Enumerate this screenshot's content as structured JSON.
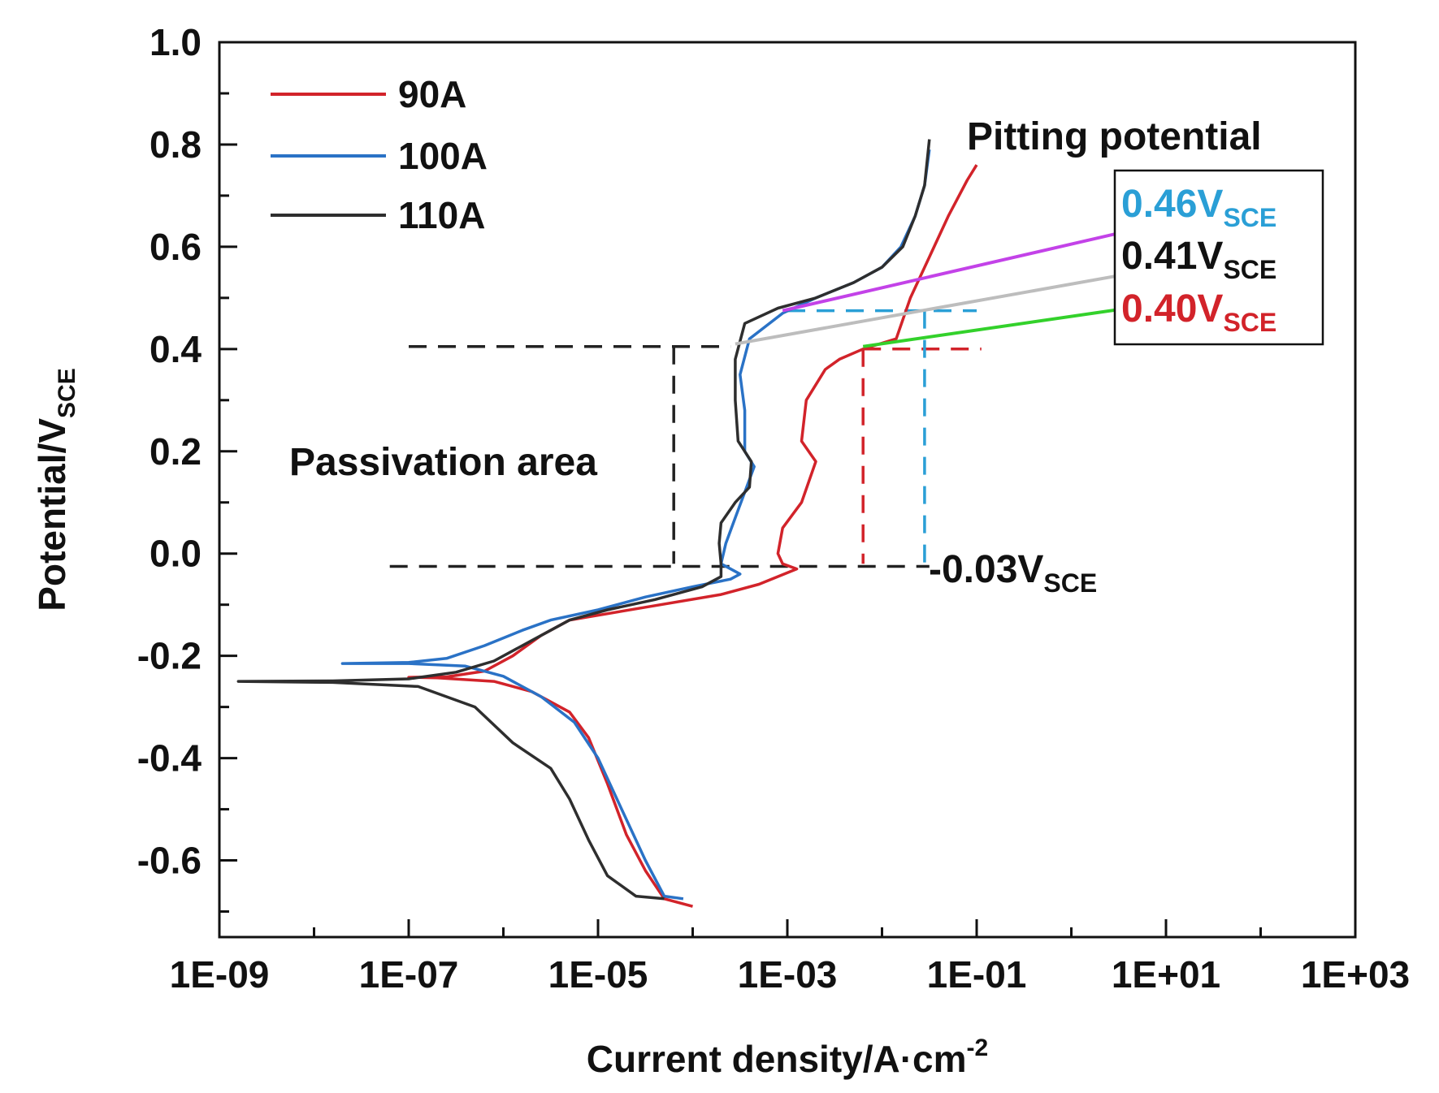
{
  "chart_data": {
    "type": "line",
    "title": "",
    "x_scale": "log",
    "xlim_log10": [
      -9,
      3
    ],
    "ylim": [
      -0.75,
      1.0
    ],
    "xlabel": "Current density/A·cm",
    "xlabel_sup": "-2",
    "ylabel": "Potential/V",
    "ylabel_sub": "SCE",
    "x_ticks": [
      {
        "exp": -9,
        "label": "1E-09"
      },
      {
        "exp": -7,
        "label": "1E-07"
      },
      {
        "exp": -5,
        "label": "1E-05"
      },
      {
        "exp": -3,
        "label": "1E-03"
      },
      {
        "exp": -1,
        "label": "1E-01"
      },
      {
        "exp": 1,
        "label": "1E+01"
      },
      {
        "exp": 3,
        "label": "1E+03"
      }
    ],
    "y_ticks": [
      {
        "value": 1.0,
        "label": "1.0"
      },
      {
        "value": 0.8,
        "label": "0.8"
      },
      {
        "value": 0.6,
        "label": "0.6"
      },
      {
        "value": 0.4,
        "label": "0.4"
      },
      {
        "value": 0.2,
        "label": "0.2"
      },
      {
        "value": 0.0,
        "label": "0.0"
      },
      {
        "value": -0.2,
        "label": "-0.2"
      },
      {
        "value": -0.4,
        "label": "-0.4"
      },
      {
        "value": -0.6,
        "label": "-0.6"
      }
    ],
    "legend_position": "top-left",
    "series": [
      {
        "name": "90A",
        "color": "#d2232a",
        "points": [
          [
            -4.0,
            -0.69
          ],
          [
            -4.3,
            -0.675
          ],
          [
            -4.5,
            -0.62
          ],
          [
            -4.7,
            -0.55
          ],
          [
            -4.9,
            -0.45
          ],
          [
            -5.1,
            -0.36
          ],
          [
            -5.3,
            -0.31
          ],
          [
            -5.7,
            -0.27
          ],
          [
            -6.1,
            -0.25
          ],
          [
            -6.7,
            -0.243
          ],
          [
            -7.0,
            -0.242
          ],
          [
            -6.6,
            -0.241
          ],
          [
            -6.2,
            -0.23
          ],
          [
            -5.9,
            -0.2
          ],
          [
            -5.6,
            -0.16
          ],
          [
            -5.3,
            -0.13
          ],
          [
            -4.5,
            -0.105
          ],
          [
            -3.7,
            -0.08
          ],
          [
            -3.3,
            -0.06
          ],
          [
            -2.9,
            -0.03
          ],
          [
            -3.05,
            -0.02
          ],
          [
            -3.1,
            0.0
          ],
          [
            -3.05,
            0.05
          ],
          [
            -2.85,
            0.1
          ],
          [
            -2.7,
            0.18
          ],
          [
            -2.85,
            0.22
          ],
          [
            -2.8,
            0.3
          ],
          [
            -2.6,
            0.36
          ],
          [
            -2.45,
            0.38
          ],
          [
            -2.2,
            0.4
          ],
          [
            -1.85,
            0.42
          ],
          [
            -1.7,
            0.5
          ],
          [
            -1.5,
            0.58
          ],
          [
            -1.3,
            0.66
          ],
          [
            -1.1,
            0.73
          ],
          [
            -1.0,
            0.76
          ]
        ]
      },
      {
        "name": "100A",
        "color": "#2a72c6",
        "points": [
          [
            -4.1,
            -0.675
          ],
          [
            -4.3,
            -0.67
          ],
          [
            -4.5,
            -0.6
          ],
          [
            -4.75,
            -0.5
          ],
          [
            -5.0,
            -0.4
          ],
          [
            -5.25,
            -0.33
          ],
          [
            -5.6,
            -0.28
          ],
          [
            -6.0,
            -0.24
          ],
          [
            -6.4,
            -0.22
          ],
          [
            -7.0,
            -0.215
          ],
          [
            -7.7,
            -0.215
          ],
          [
            -7.0,
            -0.213
          ],
          [
            -6.6,
            -0.205
          ],
          [
            -6.2,
            -0.18
          ],
          [
            -5.8,
            -0.15
          ],
          [
            -5.5,
            -0.13
          ],
          [
            -5.0,
            -0.11
          ],
          [
            -4.5,
            -0.085
          ],
          [
            -4.0,
            -0.065
          ],
          [
            -3.6,
            -0.05
          ],
          [
            -3.5,
            -0.04
          ],
          [
            -3.6,
            -0.03
          ],
          [
            -3.7,
            -0.02
          ],
          [
            -3.65,
            0.02
          ],
          [
            -3.55,
            0.07
          ],
          [
            -3.45,
            0.12
          ],
          [
            -3.35,
            0.17
          ],
          [
            -3.45,
            0.2
          ],
          [
            -3.45,
            0.28
          ],
          [
            -3.5,
            0.35
          ],
          [
            -3.4,
            0.42
          ],
          [
            -3.05,
            0.47
          ],
          [
            -2.7,
            0.5
          ],
          [
            -2.3,
            0.53
          ],
          [
            -2.0,
            0.56
          ],
          [
            -1.8,
            0.6
          ],
          [
            -1.65,
            0.66
          ],
          [
            -1.55,
            0.72
          ],
          [
            -1.5,
            0.79
          ]
        ]
      },
      {
        "name": "110A",
        "color": "#2e2e2e",
        "points": [
          [
            -4.3,
            -0.675
          ],
          [
            -4.6,
            -0.67
          ],
          [
            -4.9,
            -0.63
          ],
          [
            -5.1,
            -0.56
          ],
          [
            -5.3,
            -0.48
          ],
          [
            -5.5,
            -0.42
          ],
          [
            -5.9,
            -0.37
          ],
          [
            -6.3,
            -0.3
          ],
          [
            -6.9,
            -0.26
          ],
          [
            -7.8,
            -0.252
          ],
          [
            -8.8,
            -0.25
          ],
          [
            -7.8,
            -0.249
          ],
          [
            -7.0,
            -0.245
          ],
          [
            -6.5,
            -0.232
          ],
          [
            -6.1,
            -0.21
          ],
          [
            -5.7,
            -0.17
          ],
          [
            -5.3,
            -0.13
          ],
          [
            -4.9,
            -0.11
          ],
          [
            -4.4,
            -0.09
          ],
          [
            -3.9,
            -0.065
          ],
          [
            -3.7,
            -0.045
          ],
          [
            -3.7,
            -0.02
          ],
          [
            -3.72,
            0.02
          ],
          [
            -3.7,
            0.06
          ],
          [
            -3.55,
            0.1
          ],
          [
            -3.4,
            0.13
          ],
          [
            -3.38,
            0.18
          ],
          [
            -3.52,
            0.22
          ],
          [
            -3.55,
            0.3
          ],
          [
            -3.55,
            0.38
          ],
          [
            -3.45,
            0.45
          ],
          [
            -3.1,
            0.48
          ],
          [
            -2.7,
            0.5
          ],
          [
            -2.3,
            0.53
          ],
          [
            -2.0,
            0.56
          ],
          [
            -1.78,
            0.6
          ],
          [
            -1.65,
            0.66
          ],
          [
            -1.55,
            0.72
          ],
          [
            -1.5,
            0.81
          ]
        ]
      }
    ],
    "guides": [
      {
        "color": "#222222",
        "points": [
          [
            -7.0,
            0.405
          ],
          [
            -3.6,
            0.405
          ]
        ]
      },
      {
        "color": "#222222",
        "points": [
          [
            -4.2,
            0.405
          ],
          [
            -4.2,
            -0.02
          ]
        ]
      },
      {
        "color": "#222222",
        "points": [
          [
            -7.2,
            -0.025
          ],
          [
            -1.5,
            -0.025
          ]
        ]
      },
      {
        "color": "#d2232a",
        "points": [
          [
            -2.2,
            0.4
          ],
          [
            -0.95,
            0.4
          ]
        ]
      },
      {
        "color": "#d2232a",
        "points": [
          [
            -2.2,
            0.4
          ],
          [
            -2.2,
            -0.02
          ]
        ]
      },
      {
        "color": "#2a9fd6",
        "points": [
          [
            -3.0,
            0.475
          ],
          [
            -1.0,
            0.475
          ]
        ]
      },
      {
        "color": "#2a9fd6",
        "points": [
          [
            -1.55,
            0.475
          ],
          [
            -1.55,
            -0.02
          ]
        ]
      }
    ],
    "arrows": [
      {
        "color": "#c342e8",
        "from": [
          -3.05,
          0.475
        ],
        "to": [
          1.4,
          0.665
        ]
      },
      {
        "color": "#bdbdbd",
        "from": [
          -3.55,
          0.41
        ],
        "to": [
          1.3,
          0.57
        ]
      },
      {
        "color": "#33d12b",
        "from": [
          -2.2,
          0.405
        ],
        "to": [
          1.35,
          0.5
        ]
      }
    ],
    "annotations": {
      "pitting_title": "Pitting potential",
      "passivation": "Passivation area",
      "passivation_value": {
        "main": "-0.03V",
        "sub": "SCE",
        "color": "#111111"
      },
      "pitting_values": [
        {
          "main": "0.46V",
          "sub": "SCE",
          "color": "#2a9fd6"
        },
        {
          "main": "0.41V",
          "sub": "SCE",
          "color": "#111111"
        },
        {
          "main": "0.40V",
          "sub": "SCE",
          "color": "#d2232a"
        }
      ]
    }
  }
}
